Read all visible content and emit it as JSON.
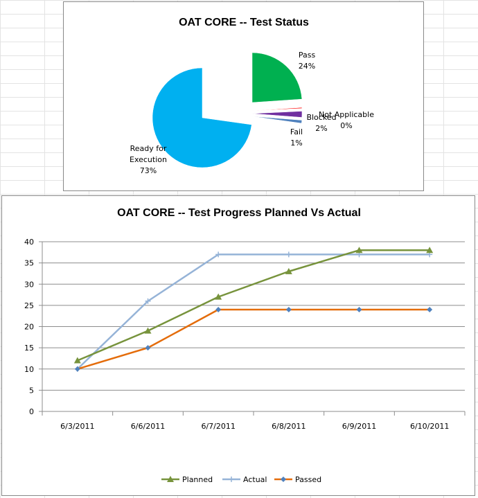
{
  "chart_data": [
    {
      "type": "pie",
      "title": "OAT CORE -- Test Status",
      "slices": [
        {
          "label": "Pass",
          "value": 24,
          "pct_label": "24%",
          "color": "#00b050"
        },
        {
          "label": "Not Applicable",
          "value": 0.3,
          "pct_label": "0%",
          "color": "#ff0000"
        },
        {
          "label": "Blocked",
          "value": 2,
          "pct_label": "2%",
          "color": "#7030a0"
        },
        {
          "label": "Fail",
          "value": 1,
          "pct_label": "1%",
          "color": "#4f81bd"
        },
        {
          "label": "Ready for Execution",
          "value": 73,
          "pct_label": "73%",
          "color": "#00b0f0"
        }
      ]
    },
    {
      "type": "line",
      "title": "OAT CORE -- Test Progress Planned Vs Actual",
      "categories": [
        "6/3/2011",
        "6/6/2011",
        "6/7/2011",
        "6/8/2011",
        "6/9/2011",
        "6/10/2011"
      ],
      "ylim": [
        0,
        40
      ],
      "yticks": [
        0,
        5,
        10,
        15,
        20,
        25,
        30,
        35,
        40
      ],
      "grid": true,
      "legend_position": "bottom",
      "series": [
        {
          "name": "Planned",
          "values": [
            12,
            19,
            27,
            33,
            38,
            38
          ],
          "color": "#77933c",
          "marker": "triangle"
        },
        {
          "name": "Actual",
          "values": [
            10,
            26,
            37,
            37,
            37,
            37
          ],
          "color": "#95b3d7",
          "marker": "plus"
        },
        {
          "name": "Passed",
          "values": [
            10,
            15,
            24,
            24,
            24,
            24
          ],
          "color": "#e46c0a",
          "marker": "diamond",
          "marker_color": "#4f81bd"
        }
      ]
    }
  ]
}
